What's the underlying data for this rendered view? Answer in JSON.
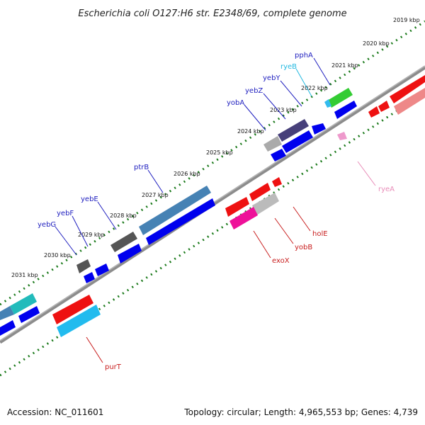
{
  "title": "Escherichia coli O127:H6 str. E2348/69, complete genome",
  "footer": {
    "accession": "Accession: NC_011601",
    "summary": "Topology: circular; Length: 4,965,553 bp; Genes: 4,739"
  },
  "colors": {
    "backbone": "#8c8c8c",
    "tick_dots": "#1b7a1b",
    "forward_label": "#1f1fbf",
    "reverse_label": "#c81e1e"
  },
  "ticks": [
    "2019 kbp",
    "2020 kbp",
    "2021 kbp",
    "2022 kbp",
    "2023 kbp",
    "2024 kbp",
    "2025 kbp",
    "2026 kbp",
    "2027 kbp",
    "2028 kbp",
    "2029 kbp",
    "2030 kbp",
    "2031 kbp"
  ],
  "genes_forward": [
    {
      "label": "pphA",
      "color": "#33cc33",
      "label_color": "#1f1fbf"
    },
    {
      "label": "ryeB",
      "color": "#33bbee",
      "label_color": "#22b8e0"
    },
    {
      "label": "yebY",
      "color": "#47407a",
      "label_color": "#1f1fbf"
    },
    {
      "label": "yebZ",
      "color": "#47407a",
      "label_color": "#1f1fbf"
    },
    {
      "label": "yobA",
      "color": "#aaaaaa",
      "label_color": "#1f1fbf"
    },
    {
      "label": "ptrB",
      "color": "#4682b4",
      "label_color": "#1f1fbf"
    },
    {
      "label": "yebE",
      "color": "#555555",
      "label_color": "#1f1fbf"
    },
    {
      "label": "yebF",
      "color": "#555555",
      "label_color": "#1f1fbf"
    },
    {
      "label": "yebG",
      "color": "#555555",
      "label_color": "#1f1fbf"
    }
  ],
  "genes_reverse": [
    {
      "label": "ryeA",
      "color": "#ee99cc",
      "label_color": "#e88cb8"
    },
    {
      "label": "holE",
      "color": "#ee1111",
      "label_color": "#c81e1e"
    },
    {
      "label": "yobB",
      "color": "#bbbbbb",
      "label_color": "#c81e1e"
    },
    {
      "label": "exoX",
      "color": "#ee1199",
      "label_color": "#c81e1e"
    },
    {
      "label": "purT",
      "color": "#22bbee",
      "label_color": "#c81e1e"
    }
  ]
}
